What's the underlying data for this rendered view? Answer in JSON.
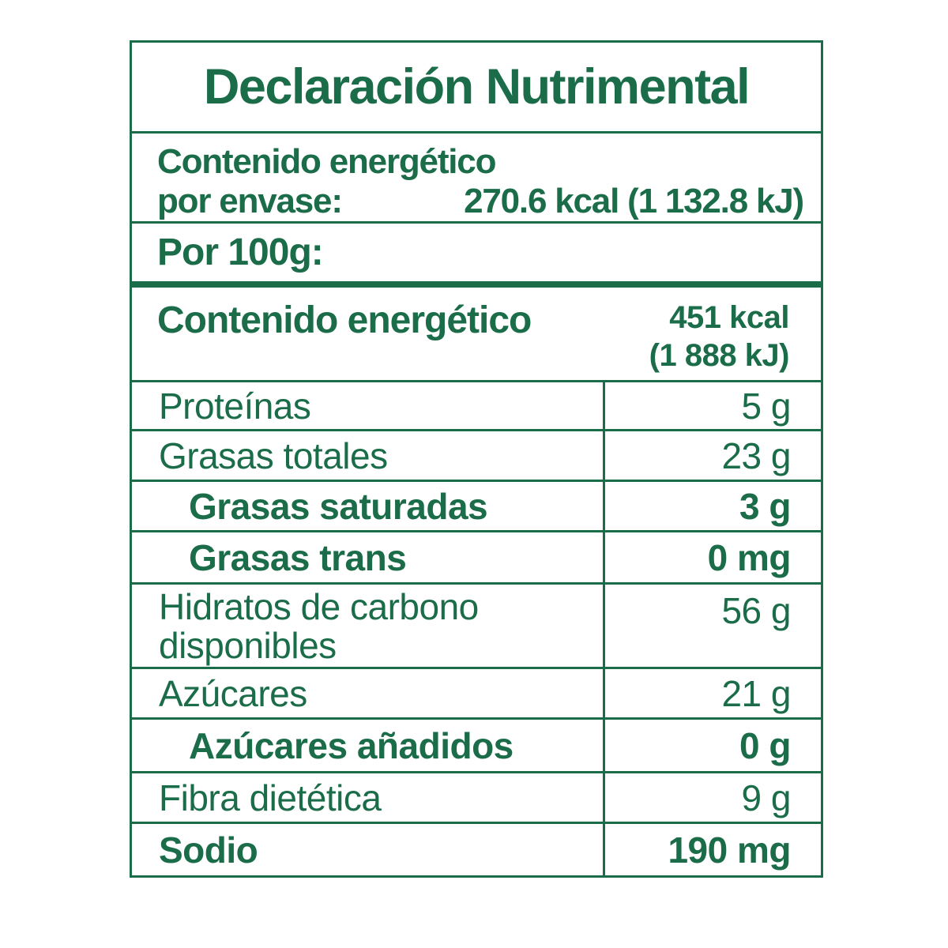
{
  "label": {
    "title": "Declaración Nutrimental",
    "energy_per_package": {
      "label_line1": "Contenido energético",
      "label_line2": "por envase:",
      "value": "270.6 kcal (1 132.8 kJ)"
    },
    "per_100g_header": "Por 100g:",
    "energy_per_100g": {
      "label": "Contenido energético",
      "value_line1": "451 kcal",
      "value_line2": "(1 888 kJ)"
    },
    "rows": [
      {
        "name": "Proteínas",
        "value": "5 g"
      },
      {
        "name": "Grasas totales",
        "value": "23 g"
      },
      {
        "name": "Grasas saturadas",
        "value": "3 g"
      },
      {
        "name": "Grasas trans",
        "value": "0 mg"
      },
      {
        "name": "Hidratos de carbono disponibles",
        "value": "56 g"
      },
      {
        "name": "Azúcares",
        "value": "21 g"
      },
      {
        "name": "Azúcares añadidos",
        "value": "0 g"
      },
      {
        "name": "Fibra dietética",
        "value": "9 g"
      },
      {
        "name": "Sodio",
        "value": "190 mg"
      }
    ],
    "colors": {
      "accent_green": "#1b6c49",
      "background": "#ffffff"
    }
  }
}
